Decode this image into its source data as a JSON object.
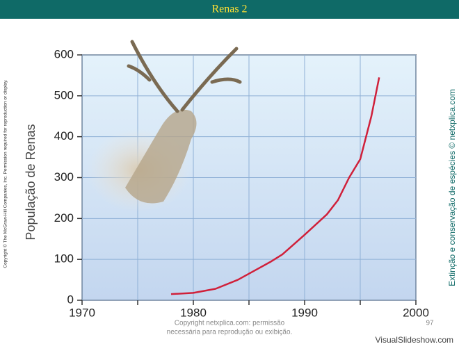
{
  "slide": {
    "title": "Renas 2",
    "copyright_left": "Copyright © The McGraw-Hill Companies, Inc. Permission required for reproduction or display.",
    "credit_right": "Extinção e conservação de espécies © netxplica.com",
    "footer_line1": "Copyright netxplica.com: permissão",
    "footer_line2": "necessária para reprodução ou exibição.",
    "page_number": "97",
    "watermark": "VisualSlideshow.com"
  },
  "chart_data": {
    "type": "line",
    "ylabel": "População de Renas",
    "x": [
      1978,
      1980,
      1982,
      1984,
      1986,
      1987,
      1988,
      1990,
      1992,
      1993,
      1994,
      1995,
      1996,
      1996.7
    ],
    "series": [
      {
        "name": "Renas",
        "color": "#d0203a",
        "values": [
          15,
          18,
          28,
          50,
          80,
          95,
          112,
          160,
          210,
          245,
          300,
          345,
          450,
          545
        ]
      }
    ],
    "xlim": [
      1970,
      2000
    ],
    "ylim": [
      0,
      600
    ],
    "xticks": [
      1970,
      1980,
      1990,
      2000
    ],
    "yticks": [
      0,
      100,
      200,
      300,
      400,
      500,
      600
    ],
    "grid": true
  }
}
